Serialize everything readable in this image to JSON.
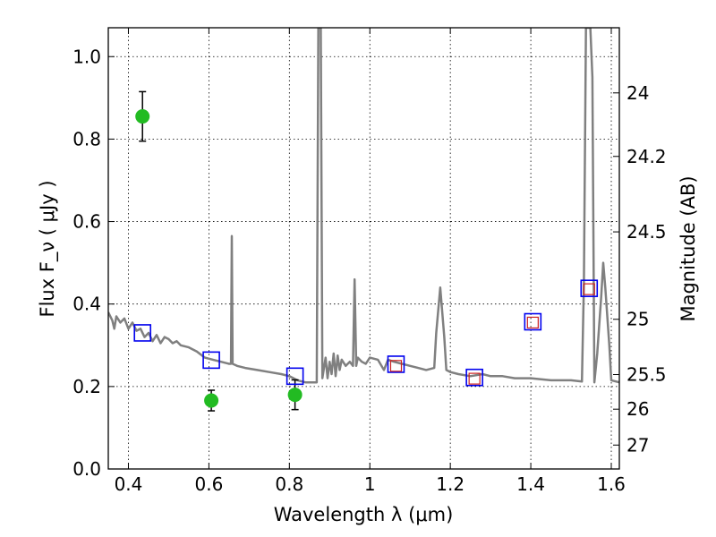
{
  "chart_data": {
    "type": "line",
    "xlabel": "Wavelength  λ (μm)",
    "ylabel": "Flux  F_ν  ( μJy )",
    "ylabel_right": "Magnitude (AB)",
    "xlim": [
      0.35,
      1.62
    ],
    "ylim": [
      0.0,
      1.07
    ],
    "grid": true,
    "x_ticks": [
      0.4,
      0.6,
      0.8,
      1.0,
      1.2,
      1.4,
      1.6
    ],
    "x_tick_labels": [
      "0.4",
      "0.6",
      "0.8",
      "1",
      "1.2",
      "1.4",
      "1.6"
    ],
    "y_ticks": [
      0.0,
      0.2,
      0.4,
      0.6,
      0.8,
      1.0
    ],
    "y_tick_labels": [
      "0.0",
      "0.2",
      "0.4",
      "0.6",
      "0.8",
      "1.0"
    ],
    "right_axis_ticks": [
      {
        "label": "24",
        "flux": 0.912
      },
      {
        "label": "24.2",
        "flux": 0.758
      },
      {
        "label": "24.5",
        "flux": 0.575
      },
      {
        "label": "25",
        "flux": 0.363
      },
      {
        "label": "25.5",
        "flux": 0.229
      },
      {
        "label": "26",
        "flux": 0.145
      },
      {
        "label": "27",
        "flux": 0.058
      }
    ],
    "model_color": "#808080",
    "model_spectrum": [
      [
        0.35,
        0.38
      ],
      [
        0.36,
        0.36
      ],
      [
        0.365,
        0.34
      ],
      [
        0.37,
        0.37
      ],
      [
        0.38,
        0.355
      ],
      [
        0.39,
        0.365
      ],
      [
        0.4,
        0.34
      ],
      [
        0.41,
        0.355
      ],
      [
        0.42,
        0.335
      ],
      [
        0.43,
        0.34
      ],
      [
        0.44,
        0.32
      ],
      [
        0.45,
        0.33
      ],
      [
        0.46,
        0.31
      ],
      [
        0.47,
        0.325
      ],
      [
        0.48,
        0.305
      ],
      [
        0.49,
        0.32
      ],
      [
        0.5,
        0.315
      ],
      [
        0.51,
        0.305
      ],
      [
        0.52,
        0.31
      ],
      [
        0.53,
        0.3
      ],
      [
        0.55,
        0.295
      ],
      [
        0.57,
        0.285
      ],
      [
        0.59,
        0.27
      ],
      [
        0.61,
        0.265
      ],
      [
        0.63,
        0.26
      ],
      [
        0.65,
        0.255
      ],
      [
        0.655,
        0.255
      ],
      [
        0.657,
        0.565
      ],
      [
        0.659,
        0.255
      ],
      [
        0.67,
        0.25
      ],
      [
        0.69,
        0.245
      ],
      [
        0.72,
        0.24
      ],
      [
        0.75,
        0.235
      ],
      [
        0.78,
        0.23
      ],
      [
        0.8,
        0.225
      ],
      [
        0.82,
        0.215
      ],
      [
        0.84,
        0.21
      ],
      [
        0.86,
        0.21
      ],
      [
        0.868,
        0.21
      ],
      [
        0.872,
        1.07
      ],
      [
        0.878,
        1.07
      ],
      [
        0.882,
        0.22
      ],
      [
        0.89,
        0.27
      ],
      [
        0.895,
        0.22
      ],
      [
        0.9,
        0.26
      ],
      [
        0.905,
        0.23
      ],
      [
        0.91,
        0.28
      ],
      [
        0.915,
        0.225
      ],
      [
        0.92,
        0.275
      ],
      [
        0.925,
        0.24
      ],
      [
        0.93,
        0.265
      ],
      [
        0.94,
        0.25
      ],
      [
        0.95,
        0.26
      ],
      [
        0.958,
        0.25
      ],
      [
        0.962,
        0.46
      ],
      [
        0.966,
        0.25
      ],
      [
        0.97,
        0.27
      ],
      [
        0.98,
        0.26
      ],
      [
        0.99,
        0.255
      ],
      [
        1.0,
        0.27
      ],
      [
        1.02,
        0.265
      ],
      [
        1.035,
        0.24
      ],
      [
        1.045,
        0.265
      ],
      [
        1.06,
        0.26
      ],
      [
        1.08,
        0.255
      ],
      [
        1.1,
        0.25
      ],
      [
        1.12,
        0.245
      ],
      [
        1.14,
        0.24
      ],
      [
        1.16,
        0.245
      ],
      [
        1.165,
        0.33
      ],
      [
        1.175,
        0.44
      ],
      [
        1.185,
        0.32
      ],
      [
        1.19,
        0.24
      ],
      [
        1.2,
        0.235
      ],
      [
        1.22,
        0.23
      ],
      [
        1.25,
        0.225
      ],
      [
        1.28,
        0.23
      ],
      [
        1.3,
        0.225
      ],
      [
        1.33,
        0.225
      ],
      [
        1.36,
        0.22
      ],
      [
        1.4,
        0.22
      ],
      [
        1.45,
        0.215
      ],
      [
        1.5,
        0.215
      ],
      [
        1.527,
        0.212
      ],
      [
        1.532,
        0.45
      ],
      [
        1.537,
        1.07
      ],
      [
        1.548,
        1.07
      ],
      [
        1.553,
        0.95
      ],
      [
        1.558,
        0.21
      ],
      [
        1.565,
        0.28
      ],
      [
        1.575,
        0.42
      ],
      [
        1.58,
        0.5
      ],
      [
        1.585,
        0.44
      ],
      [
        1.595,
        0.3
      ],
      [
        1.6,
        0.215
      ],
      [
        1.62,
        0.21
      ]
    ],
    "series": [
      {
        "marker": "circle",
        "color": "#22bb22",
        "points": [
          {
            "x": 0.435,
            "y": 0.855,
            "err": 0.06
          },
          {
            "x": 0.606,
            "y": 0.166,
            "err": 0.025
          },
          {
            "x": 0.814,
            "y": 0.18,
            "err": 0.036
          }
        ]
      },
      {
        "marker": "open-square",
        "color": "#0000ee",
        "points": [
          {
            "x": 0.435,
            "y": 0.33
          },
          {
            "x": 0.606,
            "y": 0.264
          },
          {
            "x": 0.814,
            "y": 0.225
          },
          {
            "x": 1.065,
            "y": 0.254
          },
          {
            "x": 1.26,
            "y": 0.222
          },
          {
            "x": 1.405,
            "y": 0.357
          },
          {
            "x": 1.545,
            "y": 0.438
          }
        ]
      },
      {
        "marker": "open-square-small",
        "color": "#cc2222",
        "points": [
          {
            "x": 1.065,
            "y": 0.25
          },
          {
            "x": 1.26,
            "y": 0.219
          },
          {
            "x": 1.405,
            "y": 0.355
          },
          {
            "x": 1.545,
            "y": 0.436
          }
        ]
      }
    ]
  }
}
